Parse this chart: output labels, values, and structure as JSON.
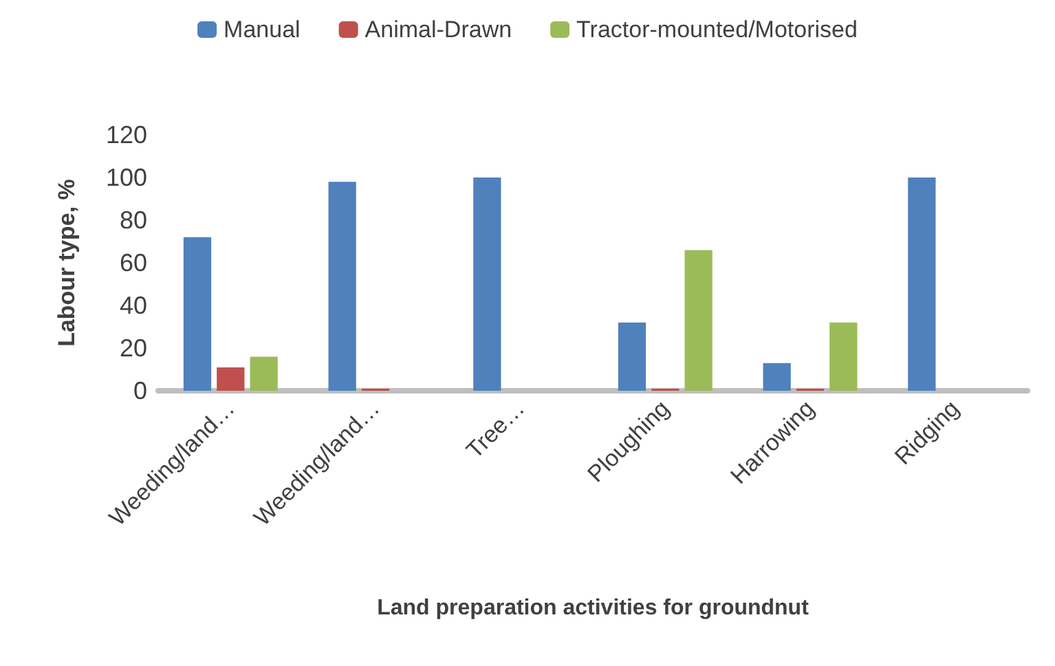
{
  "chart_data": {
    "type": "bar",
    "xlabel": "Land preparation activities for groundnut",
    "ylabel": "Labour type, %",
    "categories": [
      "Weeding/land…",
      "Weeding/land…",
      "Tree…",
      "Ploughing",
      "Harrowing",
      "Ridging"
    ],
    "series": [
      {
        "name": "Manual",
        "color": "#4f81bd",
        "values": [
          72,
          98,
          100,
          32,
          13,
          100
        ]
      },
      {
        "name": "Animal-Drawn",
        "color": "#c0504d",
        "values": [
          11,
          1,
          0,
          1,
          1,
          0
        ]
      },
      {
        "name": "Tractor-mounted/Motorised",
        "color": "#9bbb59",
        "values": [
          16,
          0,
          0,
          66,
          32,
          0
        ]
      }
    ],
    "ylim": [
      0,
      120
    ],
    "yticks": [
      0,
      20,
      40,
      60,
      80,
      100,
      120
    ],
    "grid": false,
    "legend": "top"
  }
}
